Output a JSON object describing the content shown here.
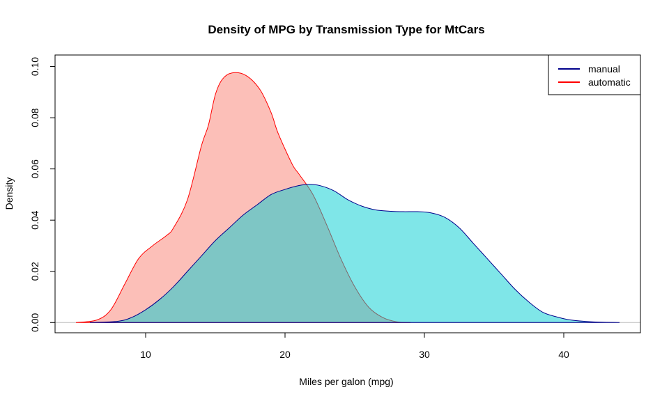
{
  "chart_data": {
    "type": "area",
    "title": "Density of MPG by Transmission Type for MtCars",
    "xlabel": "Miles per galon (mpg)",
    "ylabel": "Density",
    "xlim": [
      3.5,
      45.5
    ],
    "ylim": [
      -0.004,
      0.1045
    ],
    "xticks": [
      10,
      20,
      30,
      40
    ],
    "yticks": [
      0.0,
      0.02,
      0.04,
      0.06,
      0.08,
      0.1
    ],
    "ytick_labels": [
      "0.00",
      "0.02",
      "0.04",
      "0.06",
      "0.08",
      "0.10"
    ],
    "baseline": 0,
    "grid": false,
    "legend_position": "top-right",
    "series": [
      {
        "name": "automatic",
        "line_color": "#FF0000",
        "fill_color": "#FA8072",
        "points": [
          [
            5.0,
            0.0
          ],
          [
            6.5,
            0.001
          ],
          [
            7.5,
            0.005
          ],
          [
            8.5,
            0.015
          ],
          [
            9.5,
            0.025
          ],
          [
            10.5,
            0.03
          ],
          [
            11.5,
            0.034
          ],
          [
            12.0,
            0.037
          ],
          [
            13.0,
            0.048
          ],
          [
            14.0,
            0.069
          ],
          [
            14.5,
            0.077
          ],
          [
            15.0,
            0.089
          ],
          [
            15.5,
            0.095
          ],
          [
            16.2,
            0.0975
          ],
          [
            17.2,
            0.0965
          ],
          [
            18.2,
            0.091
          ],
          [
            19.0,
            0.082
          ],
          [
            19.5,
            0.074
          ],
          [
            20.5,
            0.062
          ],
          [
            21.0,
            0.058
          ],
          [
            22.0,
            0.05
          ],
          [
            23.0,
            0.038
          ],
          [
            24.0,
            0.025
          ],
          [
            25.0,
            0.014
          ],
          [
            26.0,
            0.006
          ],
          [
            27.0,
            0.002
          ],
          [
            28.0,
            0.0003
          ],
          [
            29.0,
            0.0
          ]
        ]
      },
      {
        "name": "manual",
        "line_color": "#00008B",
        "fill_color": "#00CED1",
        "points": [
          [
            6.0,
            0.0
          ],
          [
            8.0,
            0.0005
          ],
          [
            9.0,
            0.002
          ],
          [
            10.0,
            0.005
          ],
          [
            11.0,
            0.009
          ],
          [
            12.0,
            0.014
          ],
          [
            13.0,
            0.02
          ],
          [
            14.0,
            0.026
          ],
          [
            15.0,
            0.032
          ],
          [
            16.0,
            0.037
          ],
          [
            17.0,
            0.042
          ],
          [
            18.0,
            0.046
          ],
          [
            19.0,
            0.05
          ],
          [
            20.0,
            0.052
          ],
          [
            21.0,
            0.0535
          ],
          [
            21.7,
            0.054
          ],
          [
            22.5,
            0.0535
          ],
          [
            23.5,
            0.0515
          ],
          [
            24.5,
            0.048
          ],
          [
            25.5,
            0.0455
          ],
          [
            26.5,
            0.044
          ],
          [
            27.5,
            0.0435
          ],
          [
            28.5,
            0.0433
          ],
          [
            29.5,
            0.0433
          ],
          [
            30.5,
            0.0428
          ],
          [
            31.5,
            0.041
          ],
          [
            32.5,
            0.037
          ],
          [
            33.5,
            0.031
          ],
          [
            34.5,
            0.025
          ],
          [
            35.5,
            0.019
          ],
          [
            36.5,
            0.013
          ],
          [
            37.5,
            0.008
          ],
          [
            38.5,
            0.004
          ],
          [
            39.5,
            0.0022
          ],
          [
            40.5,
            0.001
          ],
          [
            42.0,
            0.0003
          ],
          [
            44.0,
            0.0
          ]
        ]
      }
    ],
    "legend": [
      {
        "label": "manual",
        "color": "#00008B"
      },
      {
        "label": "automatic",
        "color": "#FF0000"
      }
    ]
  }
}
